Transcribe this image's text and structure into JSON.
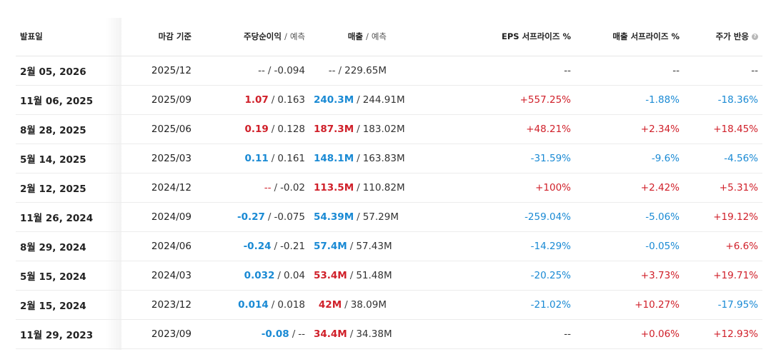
{
  "headers": {
    "date": "발표일",
    "period": "마감 기준",
    "eps": "주당순이익",
    "eps_sep": "/",
    "eps_sub": "예측",
    "rev": "매출",
    "rev_sep": "/",
    "rev_sub": "예측",
    "eps_surprise": "EPS 서프라이즈 %",
    "rev_surprise": "매출 서프라이즈 %",
    "price": "주가 반응"
  },
  "colors": {
    "positive": "#d0202a",
    "negative": "#1a8ad4"
  },
  "rows": [
    {
      "date": "2월 05, 2026",
      "period": "2025/12",
      "eps": "--",
      "eps_c": "na",
      "eps_est": "-0.094",
      "rev": "--",
      "rev_c": "na",
      "rev_est": "229.65M",
      "eps_s": "--",
      "eps_s_c": "na",
      "rev_s": "--",
      "rev_s_c": "na",
      "price": "--",
      "price_c": "na"
    },
    {
      "date": "11월 06, 2025",
      "period": "2025/09",
      "eps": "1.07",
      "eps_c": "pos",
      "eps_est": "0.163",
      "rev": "240.3M",
      "rev_c": "neg",
      "rev_est": "244.91M",
      "eps_s": "+557.25%",
      "eps_s_c": "pos",
      "rev_s": "-1.88%",
      "rev_s_c": "neg",
      "price": "-18.36%",
      "price_c": "neg"
    },
    {
      "date": "8월 28, 2025",
      "period": "2025/06",
      "eps": "0.19",
      "eps_c": "pos",
      "eps_est": "0.128",
      "rev": "187.3M",
      "rev_c": "pos",
      "rev_est": "183.02M",
      "eps_s": "+48.21%",
      "eps_s_c": "pos",
      "rev_s": "+2.34%",
      "rev_s_c": "pos",
      "price": "+18.45%",
      "price_c": "pos"
    },
    {
      "date": "5월 14, 2025",
      "period": "2025/03",
      "eps": "0.11",
      "eps_c": "neg",
      "eps_est": "0.161",
      "rev": "148.1M",
      "rev_c": "neg",
      "rev_est": "163.83M",
      "eps_s": "-31.59%",
      "eps_s_c": "neg",
      "rev_s": "-9.6%",
      "rev_s_c": "neg",
      "price": "-4.56%",
      "price_c": "neg"
    },
    {
      "date": "2월 12, 2025",
      "period": "2024/12",
      "eps": "--",
      "eps_c": "pos-dash",
      "eps_est": "-0.02",
      "rev": "113.5M",
      "rev_c": "pos",
      "rev_est": "110.82M",
      "eps_s": "+100%",
      "eps_s_c": "pos",
      "rev_s": "+2.42%",
      "rev_s_c": "pos",
      "price": "+5.31%",
      "price_c": "pos"
    },
    {
      "date": "11월 26, 2024",
      "period": "2024/09",
      "eps": "-0.27",
      "eps_c": "neg",
      "eps_est": "-0.075",
      "rev": "54.39M",
      "rev_c": "neg",
      "rev_est": "57.29M",
      "eps_s": "-259.04%",
      "eps_s_c": "neg",
      "rev_s": "-5.06%",
      "rev_s_c": "neg",
      "price": "+19.12%",
      "price_c": "pos"
    },
    {
      "date": "8월 29, 2024",
      "period": "2024/06",
      "eps": "-0.24",
      "eps_c": "neg",
      "eps_est": "-0.21",
      "rev": "57.4M",
      "rev_c": "neg",
      "rev_est": "57.43M",
      "eps_s": "-14.29%",
      "eps_s_c": "neg",
      "rev_s": "-0.05%",
      "rev_s_c": "neg",
      "price": "+6.6%",
      "price_c": "pos"
    },
    {
      "date": "5월 15, 2024",
      "period": "2024/03",
      "eps": "0.032",
      "eps_c": "neg",
      "eps_est": "0.04",
      "rev": "53.4M",
      "rev_c": "pos",
      "rev_est": "51.48M",
      "eps_s": "-20.25%",
      "eps_s_c": "neg",
      "rev_s": "+3.73%",
      "rev_s_c": "pos",
      "price": "+19.71%",
      "price_c": "pos"
    },
    {
      "date": "2월 15, 2024",
      "period": "2023/12",
      "eps": "0.014",
      "eps_c": "neg",
      "eps_est": "0.018",
      "rev": "42M",
      "rev_c": "pos",
      "rev_est": "38.09M",
      "eps_s": "-21.02%",
      "eps_s_c": "neg",
      "rev_s": "+10.27%",
      "rev_s_c": "pos",
      "price": "-17.95%",
      "price_c": "neg"
    },
    {
      "date": "11월 29, 2023",
      "period": "2023/09",
      "eps": "-0.08",
      "eps_c": "neg",
      "eps_est": "--",
      "rev": "34.4M",
      "rev_c": "pos",
      "rev_est": "34.38M",
      "eps_s": "--",
      "eps_s_c": "na",
      "rev_s": "+0.06%",
      "rev_s_c": "pos",
      "price": "+12.93%",
      "price_c": "pos"
    }
  ]
}
